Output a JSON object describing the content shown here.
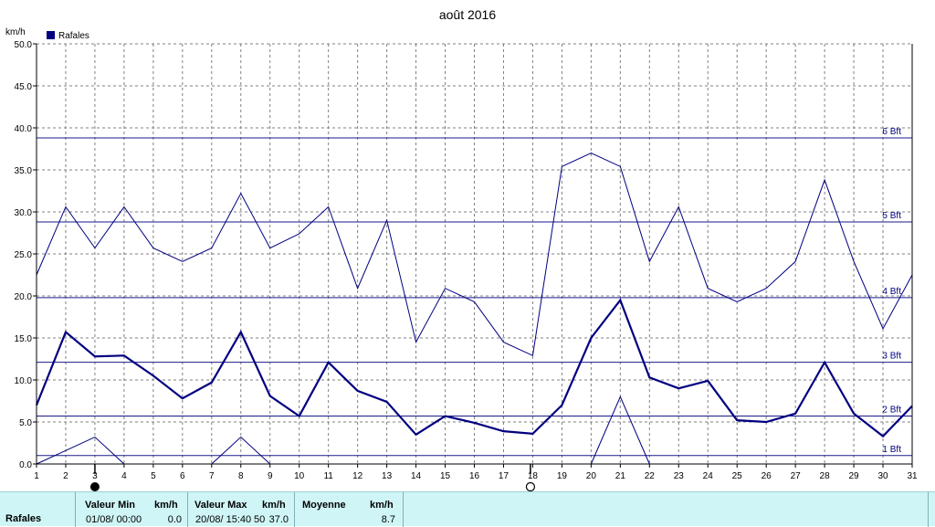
{
  "chart_data": {
    "type": "line",
    "title": "août 2016",
    "ylabel": "km/h",
    "xlabel": "",
    "ylim": [
      0,
      50
    ],
    "yticks": [
      "0.0",
      "5.0",
      "10.0",
      "15.0",
      "20.0",
      "25.0",
      "30.0",
      "35.0",
      "40.0",
      "45.0",
      "50.0"
    ],
    "ytick_values": [
      0,
      5,
      10,
      15,
      20,
      25,
      30,
      35,
      40,
      45,
      50
    ],
    "categories": [
      "1",
      "2",
      "3",
      "4",
      "5",
      "6",
      "7",
      "8",
      "9",
      "10",
      "11",
      "12",
      "13",
      "14",
      "15",
      "16",
      "17",
      "18",
      "19",
      "20",
      "21",
      "22",
      "23",
      "24",
      "25",
      "26",
      "27",
      "28",
      "29",
      "30",
      "31"
    ],
    "grid": true,
    "legend": {
      "position": "top-left",
      "entries": [
        "Rafales"
      ]
    },
    "series": [
      {
        "name": "Rafales",
        "role": "max",
        "values": [
          22.5,
          30.6,
          25.7,
          30.6,
          25.7,
          24.1,
          25.7,
          32.2,
          25.7,
          27.4,
          30.6,
          20.9,
          29.0,
          14.5,
          20.9,
          19.3,
          14.5,
          12.9,
          35.4,
          37.0,
          35.4,
          24.1,
          30.6,
          20.9,
          19.3,
          20.9,
          24.1,
          33.8,
          24.1,
          16.1,
          22.5
        ]
      },
      {
        "name": "Rafales",
        "role": "average",
        "values": [
          7.0,
          15.7,
          12.8,
          12.9,
          10.5,
          7.8,
          9.7,
          15.7,
          8.1,
          5.7,
          12.1,
          8.7,
          7.4,
          3.5,
          5.7,
          4.9,
          3.9,
          3.6,
          7.0,
          15.0,
          19.5,
          10.3,
          9.0,
          9.9,
          5.2,
          5.0,
          6.0,
          12.1,
          6.0,
          3.3,
          6.9
        ]
      },
      {
        "name": "Rafales",
        "role": "min",
        "values": [
          0,
          1.6,
          3.2,
          0,
          null,
          null,
          0,
          3.2,
          0,
          null,
          null,
          null,
          null,
          null,
          null,
          null,
          null,
          null,
          null,
          0,
          8.0,
          0,
          null,
          null,
          null,
          null,
          null,
          null,
          null,
          null,
          null
        ]
      }
    ],
    "reference_lines": [
      {
        "label": "1 Bft",
        "value": 1.0
      },
      {
        "label": "2 Bft",
        "value": 5.7
      },
      {
        "label": "3 Bft",
        "value": 12.1
      },
      {
        "label": "4 Bft",
        "value": 19.8
      },
      {
        "label": "5 Bft",
        "value": 28.8
      },
      {
        "label": "6 Bft",
        "value": 38.8
      }
    ],
    "moon_markers": [
      {
        "day": 3,
        "phase": "new-moon"
      },
      {
        "day": 18,
        "phase": "full-moon"
      }
    ],
    "colors": {
      "series": "#000080",
      "grid": "#808080",
      "axis": "#000000",
      "reflines": "#1a1a8c",
      "reflabels": "#000080"
    }
  },
  "footer": {
    "row_label": "Rafales",
    "min": {
      "header": "Valeur Min",
      "unit": "km/h",
      "datetime": "01/08/ 00:00",
      "value": "0.0"
    },
    "max": {
      "header": "Valeur Max",
      "unit": "km/h",
      "datetime": "20/08/ 15:40",
      "time_overlap": "50",
      "value": "37.0"
    },
    "avg": {
      "header": "Moyenne",
      "unit": "km/h",
      "value": "8.7"
    }
  }
}
